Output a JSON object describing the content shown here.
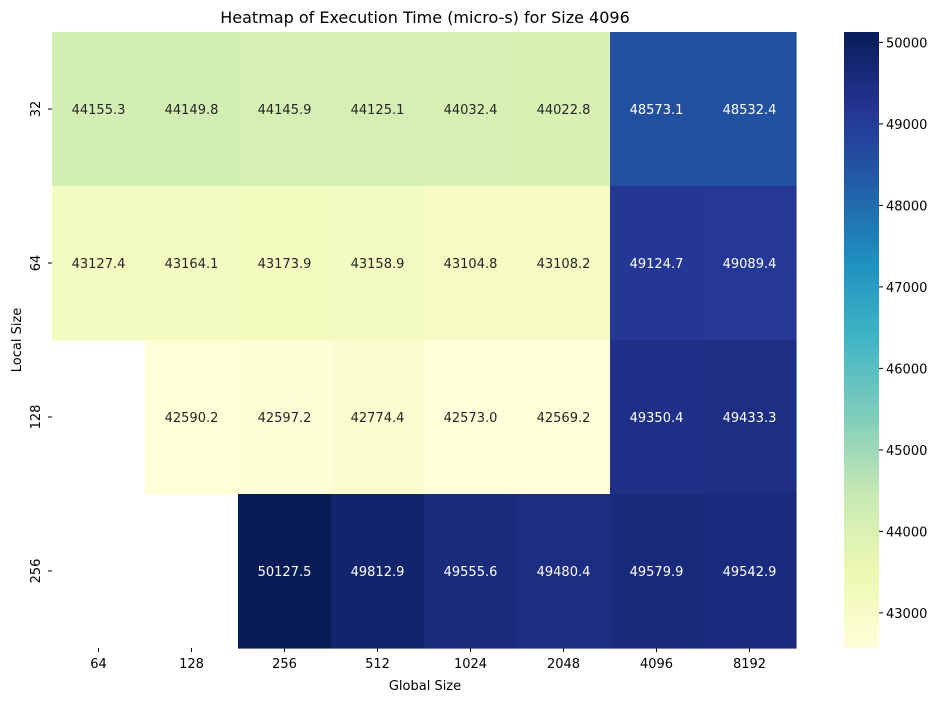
{
  "chart_data": {
    "type": "heatmap",
    "title": "Heatmap of Execution Time (micro-s) for Size 4096",
    "xlabel": "Global Size",
    "ylabel": "Local Size",
    "x_categories": [
      "64",
      "128",
      "256",
      "512",
      "1024",
      "2048",
      "4096",
      "8192"
    ],
    "y_categories": [
      "32",
      "64",
      "128",
      "256"
    ],
    "values": [
      [
        44155.3,
        44149.8,
        44145.9,
        44125.1,
        44032.4,
        44022.8,
        48573.1,
        48532.4
      ],
      [
        43127.4,
        43164.1,
        43173.9,
        43158.9,
        43104.8,
        43108.2,
        49124.7,
        49089.4
      ],
      [
        null,
        42590.2,
        42597.2,
        42774.4,
        42573.0,
        42569.2,
        49350.4,
        49433.3
      ],
      [
        null,
        null,
        50127.5,
        49812.9,
        49555.6,
        49480.4,
        49579.9,
        49542.9
      ]
    ],
    "colormap": "YlGnBu",
    "colorbar": {
      "range": [
        42569.2,
        50127.5
      ],
      "ticks": [
        "43000",
        "44000",
        "45000",
        "46000",
        "47000",
        "48000",
        "49000",
        "50000"
      ]
    }
  }
}
